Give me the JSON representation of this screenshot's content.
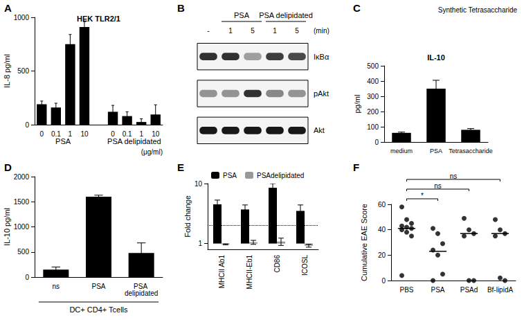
{
  "chart_data": [
    {
      "panel": "A",
      "type": "bar",
      "title": "HEK TLR2/1",
      "y_label": "IL-8 pg/ml",
      "categories": [
        "0",
        "0.1",
        "1",
        "10",
        null,
        "0",
        "0.1",
        "1",
        "10"
      ],
      "values": [
        190,
        160,
        750,
        910,
        null,
        120,
        80,
        25,
        95
      ],
      "errors": [
        30,
        40,
        90,
        50,
        null,
        60,
        40,
        30,
        90
      ],
      "color": "#000000",
      "ylim": [
        0,
        1000
      ],
      "yticks": [
        0,
        500,
        1000
      ],
      "grid": false,
      "groups": [
        {
          "label": "PSA",
          "from": 0,
          "to": 3
        },
        {
          "label": "PSA delipidated",
          "from": 5,
          "to": 8
        }
      ],
      "unit_label": "(μg/ml)"
    },
    {
      "panel": "B",
      "type": "blot",
      "groups": [
        {
          "label": "PSA",
          "from": 1,
          "to": 2
        },
        {
          "label": "PSA delipidated",
          "from": 3,
          "to": 4
        }
      ],
      "lanes": [
        "-",
        "1",
        "5",
        "1",
        "5"
      ],
      "unit_label": "(min)",
      "rows": [
        "IκBα",
        "pAkt",
        "Akt"
      ],
      "intensities": [
        [
          0.8,
          0.8,
          0.35,
          0.75,
          0.7
        ],
        [
          0.4,
          0.4,
          0.8,
          0.45,
          0.4
        ],
        [
          0.9,
          0.9,
          0.9,
          0.9,
          0.9
        ]
      ]
    },
    {
      "panel": "C",
      "type": "bar",
      "title": "IL-10",
      "y_label": "pg/ml",
      "categories": [
        "medium",
        "PSA",
        "Tetrasaccharide"
      ],
      "values": [
        60,
        350,
        80
      ],
      "errors": [
        5,
        55,
        8
      ],
      "color": "#000000",
      "ylim": [
        0,
        500
      ],
      "yticks": [
        0,
        100,
        200,
        300,
        400,
        500
      ],
      "grid": false,
      "annotation": "Synthetic Tetrasaccharide"
    },
    {
      "panel": "D",
      "type": "bar",
      "y_label": "IL-10 pg/ml",
      "categories": [
        "ns",
        "PSA",
        "PSA delipidated"
      ],
      "values": [
        150,
        1600,
        480
      ],
      "errors": [
        50,
        30,
        200
      ],
      "color": "#000000",
      "ylim": [
        0,
        2000
      ],
      "yticks": [
        0,
        500,
        1000,
        1500,
        2000
      ],
      "grid": false,
      "group_label": {
        "label": "DC+ CD4+ Tcells",
        "from": 0,
        "to": 2
      }
    },
    {
      "panel": "E",
      "type": "bar",
      "y_label": "Fold change",
      "log": "y",
      "categories": [
        "MHCII Ab1",
        "MHCII-Eb1",
        "CD86",
        "ICOSL"
      ],
      "series": [
        {
          "name": "PSA",
          "color": "#000000",
          "values": [
            4.5,
            3.7,
            8.5,
            3.5
          ],
          "errors": [
            0.8,
            0.7,
            1.5,
            0.9
          ]
        },
        {
          "name": "PSAdelipidated",
          "color": "#999999",
          "values": [
            0.97,
            1.05,
            1.08,
            0.92
          ],
          "errors": [
            0.02,
            0.08,
            0.15,
            0.05
          ]
        }
      ],
      "ylim": [
        0.8,
        10
      ],
      "yticks": [
        1,
        10
      ],
      "grid": false,
      "legend": "top-left",
      "reference_line": 2
    },
    {
      "panel": "F",
      "type": "scatter",
      "y_label": "Cumulative EAE Score",
      "categories": [
        "PBS",
        "PSA",
        "PSAd",
        "Bf-lipidA"
      ],
      "points": [
        [
          58,
          48,
          45,
          43,
          42,
          41,
          40,
          38,
          35,
          4
        ],
        [
          41,
          37,
          29,
          24,
          20,
          5,
          0
        ],
        [
          49,
          40,
          37,
          35,
          0,
          0
        ],
        [
          48,
          40,
          37,
          35,
          2,
          0
        ]
      ],
      "medians": [
        41,
        23,
        37,
        37
      ],
      "color": "#000000",
      "marker": "circle",
      "ylim": [
        0,
        60
      ],
      "yticks": [
        0,
        20,
        40,
        60
      ],
      "grid": false,
      "comparisons": [
        {
          "from": "PBS",
          "to": "PSA",
          "label": "*"
        },
        {
          "from": "PBS",
          "to": "PSAd",
          "label": "ns"
        },
        {
          "from": "PBS",
          "to": "Bf-lipidA",
          "label": "ns"
        }
      ]
    }
  ]
}
